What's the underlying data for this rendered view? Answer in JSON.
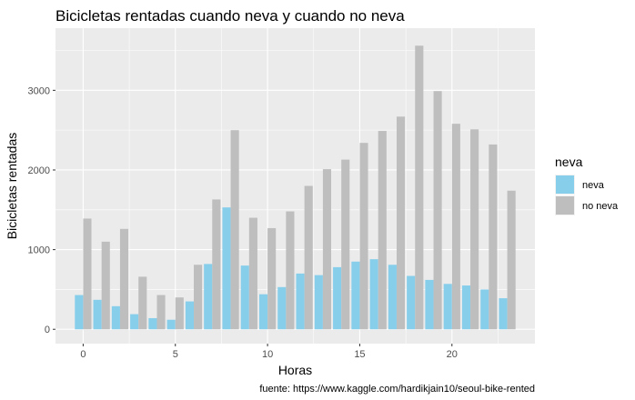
{
  "chart_data": {
    "type": "bar",
    "title": "Bicicletas rentadas cuando neva y cuando no neva",
    "xlabel": "Horas",
    "ylabel": "Bicicletas rentadas",
    "caption": "fuente: https://www.kaggle.com/hardikjain10/seoul-bike-rented",
    "xlim": [
      -1.5,
      24.5
    ],
    "ylim": [
      -180,
      3780
    ],
    "x_ticks": [
      0,
      5,
      10,
      15,
      20
    ],
    "y_ticks": [
      0,
      1000,
      2000,
      3000
    ],
    "grid": true,
    "legend": {
      "title": "neva",
      "position": "right"
    },
    "x": [
      0,
      1,
      2,
      3,
      4,
      5,
      6,
      7,
      8,
      9,
      10,
      11,
      12,
      13,
      14,
      15,
      16,
      17,
      18,
      19,
      20,
      21,
      22,
      23
    ],
    "series": [
      {
        "name": "neva",
        "color": "#87ceeb",
        "values": [
          430,
          370,
          290,
          190,
          140,
          120,
          350,
          820,
          1530,
          800,
          440,
          530,
          700,
          680,
          780,
          850,
          880,
          810,
          670,
          620,
          570,
          550,
          500,
          390
        ]
      },
      {
        "name": "no neva",
        "color": "#bebebe",
        "values": [
          1390,
          1100,
          1260,
          660,
          430,
          400,
          810,
          1630,
          2500,
          1400,
          1270,
          1480,
          1800,
          2010,
          2130,
          2340,
          2490,
          2670,
          3560,
          2990,
          2580,
          2510,
          2320,
          1740
        ]
      }
    ]
  }
}
